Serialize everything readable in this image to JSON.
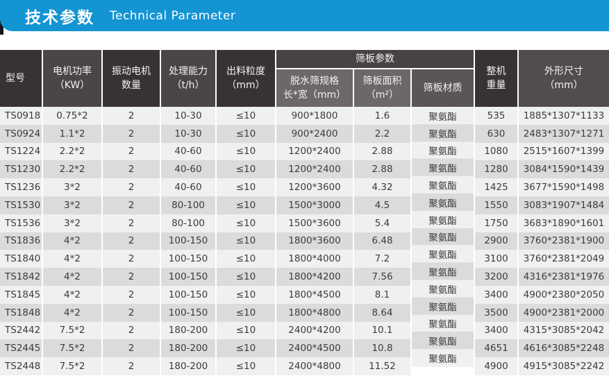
{
  "banner": {
    "title_zh": "技术参数",
    "title_en": "Technical Parameter"
  },
  "table": {
    "header": {
      "model": "型号",
      "power1": "电机功率",
      "power2": "（KW）",
      "motors1": "振动电机",
      "motors2": "数量",
      "capacity1": "处理能力",
      "capacity2": "（t/h）",
      "granularity1": "出料粒度",
      "granularity2": "（mm）",
      "group": "筛板参数",
      "spec1": "脱水筛规格",
      "spec2": "长*宽（mm）",
      "area1": "筛板面积",
      "area2": "（m²）",
      "material": "筛板材质",
      "weight1": "整机",
      "weight2": "重量",
      "dims1": "外形尺寸",
      "dims2": "（mm）"
    },
    "rows": [
      [
        "TS0918",
        "0.75*2",
        "2",
        "10-30",
        "≤10",
        "900*1800",
        "1.6",
        "聚氨酯",
        "535",
        "1885*1307*1133"
      ],
      [
        "TS0924",
        "1.1*2",
        "2",
        "10-30",
        "≤10",
        "900*2400",
        "2.2",
        "聚氨酯",
        "630",
        "2483*1307*1271"
      ],
      [
        "TS1224",
        "2.2*2",
        "2",
        "40-60",
        "≤10",
        "1200*2400",
        "2.88",
        "聚氨酯",
        "1080",
        "2515*1607*1399"
      ],
      [
        "TS1230",
        "2.2*2",
        "2",
        "40-60",
        "≤10",
        "1200*2400",
        "2.88",
        "聚氨酯",
        "1280",
        "3084*1590*1439"
      ],
      [
        "TS1236",
        "3*2",
        "2",
        "40-60",
        "≤10",
        "1200*3600",
        "4.32",
        "聚氨酯",
        "1425",
        "3677*1590*1498"
      ],
      [
        "TS1530",
        "3*2",
        "2",
        "80-100",
        "≤10",
        "1500*3000",
        "4.5",
        "聚氨酯",
        "1550",
        "3083*1907*1484"
      ],
      [
        "TS1536",
        "3*2",
        "2",
        "80-100",
        "≤10",
        "1500*3600",
        "5.4",
        "聚氨酯",
        "1750",
        "3683*1890*1601"
      ],
      [
        "TS1836",
        "4*2",
        "2",
        "100-150",
        "≤10",
        "1800*3600",
        "6.48",
        "聚氨酯",
        "2900",
        "3760*2381*1900"
      ],
      [
        "TS1840",
        "4*2",
        "2",
        "100-150",
        "≤10",
        "1800*4000",
        "7.2",
        "聚氨酯",
        "3100",
        "3760*2381*2049"
      ],
      [
        "TS1842",
        "4*2",
        "2",
        "100-150",
        "≤10",
        "1800*4200",
        "7.56",
        "聚氨酯",
        "3200",
        "4316*2381*1976"
      ],
      [
        "TS1845",
        "4*2",
        "2",
        "100-150",
        "≤10",
        "1800*4500",
        "8.1",
        "聚氨酯",
        "3400",
        "4900*2380*2050"
      ],
      [
        "TS1848",
        "4*2",
        "2",
        "100-150",
        "≤10",
        "1800*4800",
        "8.64",
        "聚氨酯",
        "3500",
        "4900*2381*2000"
      ],
      [
        "TS2442",
        "7.5*2",
        "2",
        "180-200",
        "≤10",
        "2400*4200",
        "10.1",
        "聚氨酯",
        "3400",
        "4315*3085*2042"
      ],
      [
        "TS2445",
        "7.5*2",
        "2",
        "180-200",
        "≤10",
        "2400*4500",
        "10.8",
        "聚氨酯",
        "4651",
        "4616*3085*2248"
      ],
      [
        "TS2448",
        "7.5*2",
        "2",
        "180-200",
        "≤10",
        "2400*4800",
        "11.52",
        "聚氨酯",
        "4900",
        "4915*3085*2242"
      ]
    ]
  },
  "colors": {
    "banner_blue": "#1394d3",
    "header_dark": "#383233",
    "header_mid": "#4b4546",
    "header_sub_light": "#6d6768",
    "header_sub_material": "#5b5556",
    "row_even": "#f0f0f0",
    "row_odd": "#dbdbdb",
    "body_text": "#3b3b3b"
  }
}
